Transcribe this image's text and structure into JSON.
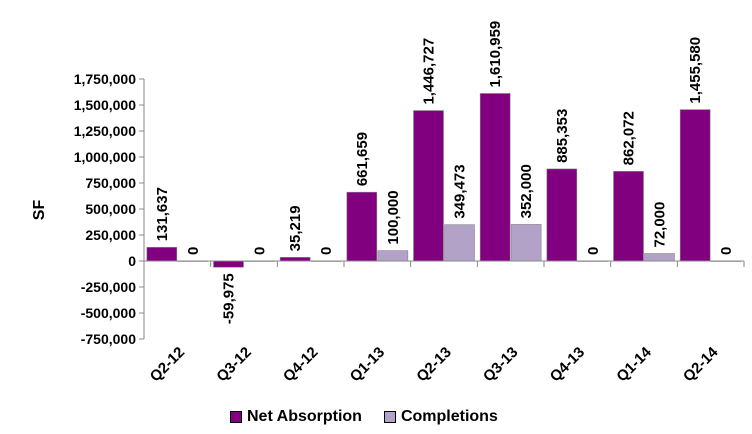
{
  "chart_data": {
    "type": "bar",
    "title": "",
    "xlabel": "",
    "ylabel": "SF",
    "ylim": [
      -750000,
      1750000
    ],
    "yticks": [
      {
        "value": 1750000,
        "label": "1,750,000"
      },
      {
        "value": 1500000,
        "label": "1,500,000"
      },
      {
        "value": 1250000,
        "label": "1,250,000"
      },
      {
        "value": 1000000,
        "label": "1,000,000"
      },
      {
        "value": 750000,
        "label": "750,000"
      },
      {
        "value": 500000,
        "label": "500,000"
      },
      {
        "value": 250000,
        "label": "250,000"
      },
      {
        "value": 0,
        "label": "0"
      },
      {
        "value": -250000,
        "label": "-250,000"
      },
      {
        "value": -500000,
        "label": "-500,000"
      },
      {
        "value": -750000,
        "label": "-750,000"
      }
    ],
    "categories": [
      "Q2-12",
      "Q3-12",
      "Q4-12",
      "Q1-13",
      "Q2-13",
      "Q3-13",
      "Q4-13",
      "Q1-14",
      "Q2-14"
    ],
    "series": [
      {
        "name": "Net Absorption",
        "color": "#800080",
        "values": [
          131637,
          -59975,
          35219,
          661659,
          1446727,
          1610959,
          885353,
          862072,
          1455580
        ],
        "labels": [
          "131,637",
          "-59,975",
          "35,219",
          "661,659",
          "1,446,727",
          "1,610,959",
          "885,353",
          "862,072",
          "1,455,580"
        ]
      },
      {
        "name": "Completions",
        "color": "#B3A2C7",
        "values": [
          0,
          0,
          0,
          100000,
          349473,
          352000,
          0,
          72000,
          0
        ],
        "labels": [
          "0",
          "0",
          "0",
          "100,000",
          "349,473",
          "352,000",
          "0",
          "72,000",
          "0"
        ]
      }
    ],
    "grid": false,
    "legend_position": "bottom"
  }
}
